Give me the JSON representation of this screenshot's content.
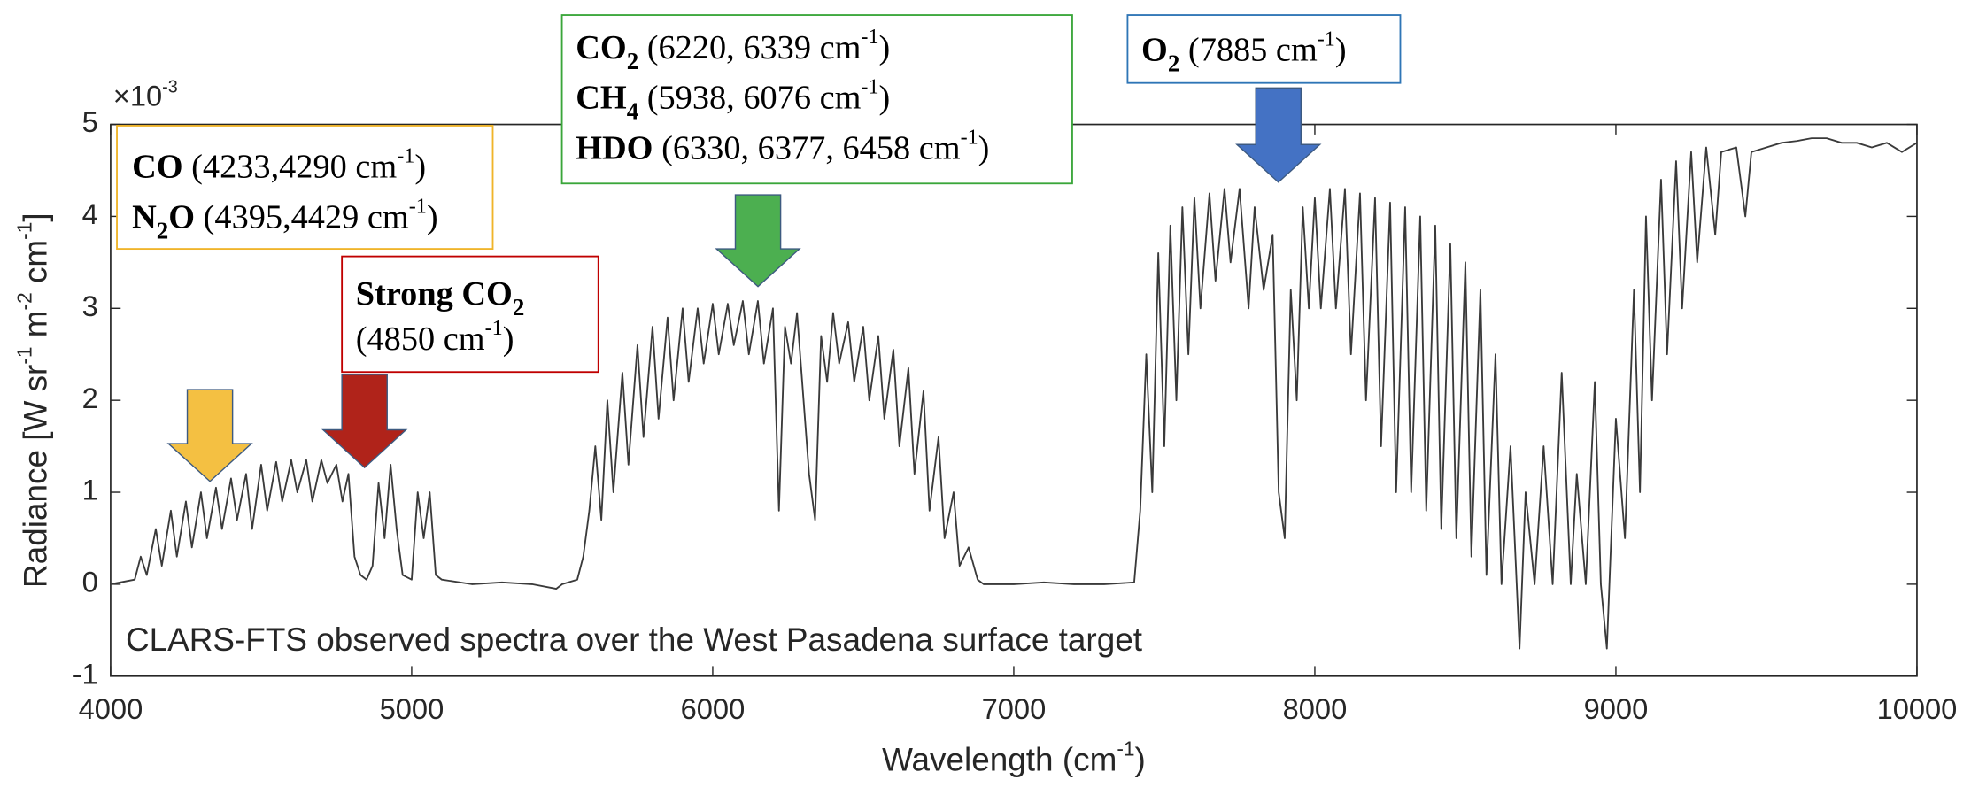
{
  "chart_data": {
    "type": "line",
    "color": "#3a3a3a",
    "caption": "CLARS-FTS observed spectra over the West Pasadena surface target",
    "x_label": [
      {
        "text": "Wavelength (cm"
      },
      {
        "text": "-1",
        "sup": true
      },
      {
        "text": ")"
      }
    ],
    "y_label": [
      {
        "text": "Radiance [W sr"
      },
      {
        "text": "-1",
        "sup": true
      },
      {
        "text": " m"
      },
      {
        "text": "-2",
        "sup": true
      },
      {
        "text": " cm"
      },
      {
        "text": "-1",
        "sup": true
      },
      {
        "text": "]"
      }
    ],
    "y_exponent": [
      {
        "text": "×10"
      },
      {
        "text": "-3",
        "sup": true
      }
    ],
    "xlim": [
      4000,
      10000
    ],
    "xticks": [
      4000,
      5000,
      6000,
      7000,
      8000,
      9000,
      10000
    ],
    "ylim": [
      -1,
      5
    ],
    "yticks": [
      -1,
      0,
      1,
      2,
      3,
      4,
      5
    ],
    "grid": false,
    "annotations": [
      {
        "color": "#f0b429",
        "arrow_color": "#f4c042",
        "lines": [
          [
            {
              "text": "CO",
              "bold": true
            },
            {
              "text": " (4233,4290 cm"
            },
            {
              "text": "-1",
              "sup": true
            },
            {
              "text": ")"
            }
          ],
          [
            {
              "text": "N",
              "bold": true
            },
            {
              "text": "2",
              "bold": true,
              "sub": true
            },
            {
              "text": "O",
              "bold": true
            },
            {
              "text": " (4395,4429 cm"
            },
            {
              "text": "-1",
              "sup": true
            },
            {
              "text": ")"
            }
          ]
        ]
      },
      {
        "color": "#c00000",
        "arrow_color": "#b0231a",
        "lines": [
          [
            {
              "text": "Strong CO",
              "bold": true
            },
            {
              "text": "2",
              "bold": true,
              "sub": true
            }
          ],
          [
            {
              "text": "(4850 cm"
            },
            {
              "text": "-1",
              "sup": true
            },
            {
              "text": ")"
            }
          ]
        ]
      },
      {
        "color": "#3aa63a",
        "arrow_color": "#4caf50",
        "lines": [
          [
            {
              "text": "CO",
              "bold": true
            },
            {
              "text": "2",
              "bold": true,
              "sub": true
            },
            {
              "text": " (6220, 6339 cm"
            },
            {
              "text": "-1",
              "sup": true
            },
            {
              "text": ")"
            }
          ],
          [
            {
              "text": "CH",
              "bold": true
            },
            {
              "text": "4",
              "bold": true,
              "sub": true
            },
            {
              "text": " (5938, 6076 cm"
            },
            {
              "text": "-1",
              "sup": true
            },
            {
              "text": ")"
            }
          ],
          [
            {
              "text": "HDO",
              "bold": true
            },
            {
              "text": " (6330, 6377, 6458 cm"
            },
            {
              "text": "-1",
              "sup": true
            },
            {
              "text": ")"
            }
          ]
        ]
      },
      {
        "color": "#2e75b6",
        "arrow_color": "#4472c4",
        "lines": [
          [
            {
              "text": "O",
              "bold": true
            },
            {
              "text": "2",
              "bold": true,
              "sub": true
            },
            {
              "text": " (7885 cm"
            },
            {
              "text": "-1",
              "sup": true
            },
            {
              "text": ")"
            }
          ]
        ]
      }
    ],
    "x": [
      4000,
      4080,
      4100,
      4120,
      4150,
      4170,
      4200,
      4220,
      4250,
      4270,
      4300,
      4320,
      4350,
      4370,
      4400,
      4420,
      4450,
      4470,
      4500,
      4520,
      4550,
      4570,
      4600,
      4620,
      4650,
      4670,
      4700,
      4720,
      4750,
      4770,
      4790,
      4810,
      4830,
      4850,
      4870,
      4890,
      4910,
      4930,
      4950,
      4970,
      5000,
      5020,
      5040,
      5060,
      5080,
      5100,
      5200,
      5300,
      5400,
      5480,
      5500,
      5550,
      5570,
      5590,
      5610,
      5630,
      5650,
      5670,
      5700,
      5720,
      5750,
      5770,
      5800,
      5820,
      5850,
      5870,
      5900,
      5920,
      5950,
      5970,
      6000,
      6020,
      6050,
      6070,
      6100,
      6120,
      6150,
      6170,
      6200,
      6220,
      6240,
      6260,
      6280,
      6320,
      6340,
      6360,
      6380,
      6400,
      6420,
      6450,
      6470,
      6500,
      6520,
      6550,
      6570,
      6600,
      6620,
      6650,
      6670,
      6700,
      6720,
      6750,
      6770,
      6800,
      6820,
      6850,
      6880,
      6900,
      7000,
      7100,
      7200,
      7300,
      7400,
      7420,
      7440,
      7460,
      7480,
      7500,
      7520,
      7540,
      7560,
      7580,
      7600,
      7620,
      7650,
      7670,
      7700,
      7720,
      7750,
      7780,
      7800,
      7830,
      7860,
      7880,
      7900,
      7920,
      7940,
      7960,
      7980,
      8000,
      8020,
      8050,
      8070,
      8100,
      8120,
      8150,
      8170,
      8200,
      8220,
      8250,
      8270,
      8300,
      8320,
      8350,
      8370,
      8400,
      8420,
      8450,
      8470,
      8500,
      8520,
      8550,
      8570,
      8600,
      8620,
      8650,
      8680,
      8700,
      8730,
      8760,
      8790,
      8820,
      8850,
      8870,
      8900,
      8930,
      8950,
      8970,
      9000,
      9030,
      9060,
      9080,
      9100,
      9120,
      9150,
      9170,
      9200,
      9220,
      9250,
      9270,
      9300,
      9330,
      9350,
      9400,
      9430,
      9450,
      9500,
      9550,
      9600,
      9650,
      9700,
      9750,
      9800,
      9850,
      9900,
      9950,
      10000
    ],
    "values": [
      0,
      0.05,
      0.3,
      0.1,
      0.6,
      0.2,
      0.8,
      0.3,
      0.9,
      0.4,
      1.0,
      0.5,
      1.05,
      0.6,
      1.15,
      0.7,
      1.2,
      0.6,
      1.3,
      0.8,
      1.33,
      0.9,
      1.35,
      1.0,
      1.35,
      0.9,
      1.35,
      1.1,
      1.3,
      0.9,
      1.2,
      0.3,
      0.1,
      0.05,
      0.2,
      1.1,
      0.5,
      1.3,
      0.6,
      0.1,
      0.05,
      1.0,
      0.5,
      1.0,
      0.1,
      0.05,
      0,
      0.02,
      0,
      -0.05,
      0,
      0.05,
      0.3,
      0.8,
      1.5,
      0.7,
      2.0,
      1.0,
      2.3,
      1.3,
      2.6,
      1.6,
      2.8,
      1.8,
      2.9,
      2.0,
      3.0,
      2.2,
      3.0,
      2.4,
      3.05,
      2.5,
      3.05,
      2.6,
      3.08,
      2.5,
      3.08,
      2.4,
      3.0,
      0.8,
      2.8,
      2.4,
      2.95,
      1.2,
      0.7,
      2.7,
      2.2,
      2.95,
      2.4,
      2.85,
      2.2,
      2.8,
      2.0,
      2.7,
      1.8,
      2.55,
      1.5,
      2.35,
      1.2,
      2.1,
      0.8,
      1.6,
      0.5,
      1.0,
      0.2,
      0.4,
      0.05,
      0,
      0,
      0.02,
      0,
      0,
      0.02,
      0.8,
      2.5,
      1.0,
      3.6,
      1.5,
      3.9,
      2.0,
      4.1,
      2.5,
      4.2,
      3.0,
      4.25,
      3.3,
      4.3,
      3.5,
      4.3,
      3.0,
      4.1,
      3.2,
      3.8,
      1.0,
      0.5,
      3.2,
      2.0,
      4.1,
      3.0,
      4.2,
      3.0,
      4.3,
      3.0,
      4.3,
      2.5,
      4.25,
      2.0,
      4.2,
      1.5,
      4.15,
      1.0,
      4.1,
      1.0,
      4.0,
      0.8,
      3.9,
      0.6,
      3.7,
      0.5,
      3.5,
      0.3,
      3.2,
      0.1,
      2.5,
      0,
      1.5,
      -0.7,
      1.0,
      0,
      1.5,
      0,
      2.3,
      0,
      1.2,
      0,
      2.2,
      0,
      -0.7,
      1.8,
      0.5,
      3.2,
      1.0,
      4.0,
      2.0,
      4.4,
      2.5,
      4.6,
      3.0,
      4.7,
      3.5,
      4.75,
      3.8,
      4.7,
      4.75,
      4.0,
      4.7,
      4.75,
      4.8,
      4.82,
      4.85,
      4.85,
      4.8,
      4.8,
      4.75,
      4.8,
      4.7,
      4.8
    ]
  }
}
